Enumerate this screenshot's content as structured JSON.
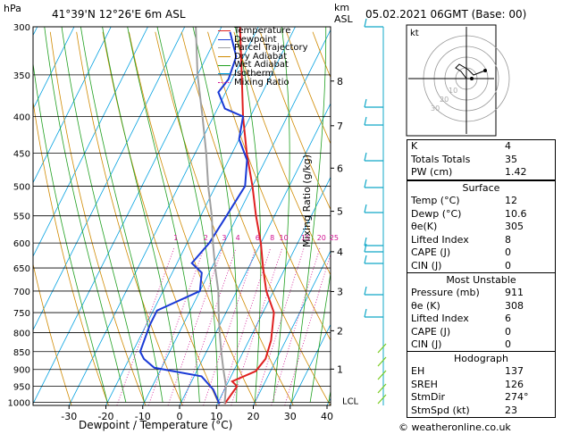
{
  "header": {
    "hpa_label": "hPa",
    "location": "41°39'N  12°26'E  6m  ASL",
    "km_label": "km",
    "asl_label": "ASL",
    "datetime": "05.02.2021  06GMT  (Base: 00)"
  },
  "chart_data": {
    "type": "line",
    "title": "",
    "xlabel": "Dewpoint / Temperature (°C)",
    "ylabel": "hPa",
    "x_ticks": [
      -30,
      -20,
      -10,
      0,
      10,
      20,
      30,
      40
    ],
    "xlim": [
      -35,
      40
    ],
    "pressure_levels": [
      300,
      350,
      400,
      450,
      500,
      550,
      600,
      650,
      700,
      750,
      800,
      850,
      900,
      950,
      1000
    ],
    "ylim": [
      1010,
      300
    ],
    "y_scale": "log",
    "km_ticks": [
      {
        "km": "8",
        "p": 357
      },
      {
        "km": "7",
        "p": 412
      },
      {
        "km": "6",
        "p": 472
      },
      {
        "km": "5",
        "p": 542
      },
      {
        "km": "4",
        "p": 617
      },
      {
        "km": "3",
        "p": 701
      },
      {
        "km": "2",
        "p": 795
      },
      {
        "km": "1",
        "p": 899
      }
    ],
    "lcl": {
      "label": "LCL",
      "p": 1000
    },
    "mixing_ratio_label": "Mixing Ratio (g/kg)",
    "mixing_ratio_values": [
      "1",
      "2",
      "3",
      "4",
      "6",
      "8",
      "10",
      "15",
      "20",
      "25"
    ],
    "series": [
      {
        "name": "Temperature",
        "color": "#e02020",
        "points": [
          [
            12,
            1005
          ],
          [
            13,
            950
          ],
          [
            11,
            935
          ],
          [
            16,
            905
          ],
          [
            17,
            870
          ],
          [
            16,
            820
          ],
          [
            13,
            750
          ],
          [
            8,
            700
          ],
          [
            4,
            650
          ],
          [
            0,
            600
          ],
          [
            -5,
            550
          ],
          [
            -10,
            500
          ],
          [
            -16,
            450
          ],
          [
            -22,
            400
          ],
          [
            -28,
            350
          ],
          [
            -35,
            300
          ]
        ]
      },
      {
        "name": "Dewpoint",
        "color": "#1a3ad6",
        "points": [
          [
            10.6,
            1005
          ],
          [
            7,
            960
          ],
          [
            2,
            920
          ],
          [
            -12,
            895
          ],
          [
            -16,
            870
          ],
          [
            -18,
            850
          ],
          [
            -19,
            780
          ],
          [
            -19,
            745
          ],
          [
            -10,
            700
          ],
          [
            -12,
            660
          ],
          [
            -16,
            640
          ],
          [
            -14,
            600
          ],
          [
            -13,
            550
          ],
          [
            -12,
            500
          ],
          [
            -15,
            460
          ],
          [
            -20,
            430
          ],
          [
            -22,
            400
          ],
          [
            -28,
            390
          ],
          [
            -32,
            370
          ],
          [
            -31,
            355
          ],
          [
            -32,
            330
          ],
          [
            -37,
            305
          ]
        ]
      },
      {
        "name": "Parcel Trajectory",
        "color": "#a0a0a0",
        "points": [
          [
            12,
            1005
          ],
          [
            10,
            950
          ],
          [
            7,
            900
          ],
          [
            4,
            850
          ],
          [
            1,
            800
          ],
          [
            -2,
            750
          ],
          [
            -5,
            700
          ],
          [
            -9,
            650
          ],
          [
            -13,
            600
          ],
          [
            -17,
            550
          ],
          [
            -22,
            500
          ],
          [
            -27,
            450
          ],
          [
            -33,
            400
          ],
          [
            -40,
            350
          ],
          [
            -47,
            300
          ]
        ]
      },
      {
        "name": "Dry Adiabat",
        "color": "#d08a00",
        "points": []
      },
      {
        "name": "Wet Adiabat",
        "color": "#20a020",
        "points": []
      },
      {
        "name": "Isotherm",
        "color": "#00a0e0",
        "points": []
      },
      {
        "name": "Mixing Ratio",
        "color": "#d01090",
        "points": []
      }
    ]
  },
  "hodograph": {
    "unit_label": "kt",
    "ring_labels": [
      "10",
      "20",
      "30"
    ]
  },
  "indices": [
    {
      "label": "K",
      "value": "4"
    },
    {
      "label": "Totals Totals",
      "value": "35"
    },
    {
      "label": "PW (cm)",
      "value": "1.42"
    }
  ],
  "surface": {
    "title": "Surface",
    "rows": [
      {
        "label": "Temp (°C)",
        "value": "12"
      },
      {
        "label": "Dewp (°C)",
        "value": "10.6"
      },
      {
        "label": "θe(K)",
        "value": "305"
      },
      {
        "label": "Lifted Index",
        "value": "8"
      },
      {
        "label": "CAPE (J)",
        "value": "0"
      },
      {
        "label": "CIN (J)",
        "value": "0"
      }
    ]
  },
  "most_unstable": {
    "title": "Most Unstable",
    "rows": [
      {
        "label": "Pressure (mb)",
        "value": "911"
      },
      {
        "label": "θe (K)",
        "value": "308"
      },
      {
        "label": "Lifted Index",
        "value": "6"
      },
      {
        "label": "CAPE (J)",
        "value": "0"
      },
      {
        "label": "CIN (J)",
        "value": "0"
      }
    ]
  },
  "hodograph_stats": {
    "title": "Hodograph",
    "rows": [
      {
        "label": "EH",
        "value": "137"
      },
      {
        "label": "SREH",
        "value": "126"
      },
      {
        "label": "StmDir",
        "value": "274°"
      },
      {
        "label": "StmSpd (kt)",
        "value": "23"
      }
    ]
  },
  "footer": {
    "credit": "© weatheronline.co.uk"
  },
  "colors": {
    "temperature": "#e02020",
    "dewpoint": "#1a3ad6",
    "parcel": "#a0a0a0",
    "wind": "#10a8c8"
  }
}
